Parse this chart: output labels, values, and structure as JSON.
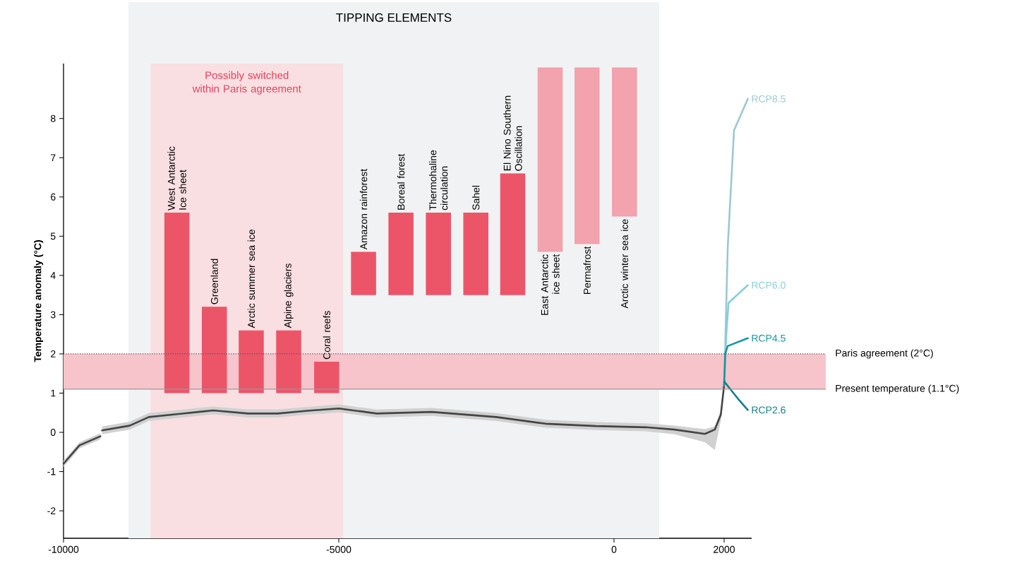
{
  "chart_data": {
    "type": "line",
    "ylabel": "Temperature anomaly (°C)",
    "xlim": [
      -10000,
      2500
    ],
    "ylim": [
      -2.7,
      9.4
    ],
    "xticks": [
      -10000,
      -5000,
      0,
      2000
    ],
    "yticks": [
      -2,
      -1,
      0,
      1,
      2,
      3,
      4,
      5,
      6,
      7,
      8
    ],
    "bands": [
      {
        "axis": "x",
        "from": -8820,
        "to": 820,
        "label": "TIPPING ELEMENTS",
        "color": "#f1f2f3"
      },
      {
        "axis": "x",
        "from": -8420,
        "to": -4920,
        "label": "Possibly switched within Paris agreement",
        "color": "#f9dfe2"
      },
      {
        "axis": "y",
        "from": 1.1,
        "to": 2,
        "color": "#f6c4ca"
      }
    ],
    "ref_lines": [
      {
        "axis": "y",
        "value": 2,
        "label": "Paris agreement (2°C)",
        "line_style": "dotted",
        "color": "#555555"
      },
      {
        "axis": "y",
        "value": 1.1,
        "label": "Present temperature (1.1°C)",
        "line_style": "solid",
        "color": "#999999"
      }
    ],
    "series": [
      {
        "type": "bar",
        "name": "West Antarctic Ice sheet",
        "color": "#ec5568",
        "x": [
          -7940
        ],
        "base": [
          1
        ],
        "values": [
          4.6
        ]
      },
      {
        "type": "bar",
        "name": "Greenland",
        "color": "#ec5568",
        "x": [
          -7260
        ],
        "base": [
          1
        ],
        "values": [
          2.2
        ]
      },
      {
        "type": "bar",
        "name": "Arctic summer sea ice",
        "color": "#ec5568",
        "x": [
          -6590
        ],
        "base": [
          1
        ],
        "values": [
          1.6
        ]
      },
      {
        "type": "bar",
        "name": "Alpine glaciers",
        "color": "#ec5568",
        "x": [
          -5910
        ],
        "base": [
          1
        ],
        "values": [
          1.6
        ]
      },
      {
        "type": "bar",
        "name": "Coral reefs",
        "color": "#ec5568",
        "x": [
          -5220
        ],
        "base": [
          1
        ],
        "values": [
          0.8
        ]
      },
      {
        "type": "bar",
        "name": "Amazon rainforest",
        "color": "#ec5568",
        "x": [
          -4550
        ],
        "base": [
          3.5
        ],
        "values": [
          1.1
        ]
      },
      {
        "type": "bar",
        "name": "Boreal forest",
        "color": "#ec5568",
        "x": [
          -3870
        ],
        "base": [
          3.5
        ],
        "values": [
          2.1
        ]
      },
      {
        "type": "bar",
        "name": "Thermohaline circulation",
        "color": "#ec5568",
        "x": [
          -3190
        ],
        "base": [
          3.5
        ],
        "values": [
          2.1
        ]
      },
      {
        "type": "bar",
        "name": "Sahel",
        "color": "#ec5568",
        "x": [
          -2510
        ],
        "base": [
          3.5
        ],
        "values": [
          2.1
        ]
      },
      {
        "type": "bar",
        "name": "El Nino Southern Oscillation",
        "color": "#ec5568",
        "x": [
          -1840
        ],
        "base": [
          3.5
        ],
        "values": [
          3.1
        ]
      },
      {
        "type": "bar",
        "name": "East Antarctic ice sheet",
        "color": "#f2a3ad",
        "x": [
          -1160
        ],
        "base": [
          4.6
        ],
        "values": [
          4.7
        ]
      },
      {
        "type": "bar",
        "name": "Permafrost",
        "color": "#f2a3ad",
        "x": [
          -490
        ],
        "base": [
          4.8
        ],
        "values": [
          4.5
        ]
      },
      {
        "type": "bar",
        "name": "Arctic winter sea ice",
        "color": "#f2a3ad",
        "x": [
          190
        ],
        "base": [
          5.5
        ],
        "values": [
          3.8
        ]
      },
      {
        "color": "#444444",
        "x": [
          -10000,
          -9710,
          -9330,
          -9315,
          -9300,
          -8800,
          -8450,
          -7550,
          -7280,
          -6650,
          -6110,
          -5570,
          -5000,
          -4310,
          -3310,
          -2140,
          -1240,
          -330,
          570,
          1100,
          1650,
          1830,
          1940,
          2000
        ],
        "values": [
          -0.8,
          -0.33,
          -0.1,
          null,
          0.05,
          0.17,
          0.39,
          0.52,
          0.56,
          0.48,
          0.48,
          0.55,
          0.61,
          0.48,
          0.52,
          0.39,
          0.22,
          0.16,
          0.13,
          0.07,
          -0.04,
          0.07,
          0.45,
          1.2
        ],
        "lower": [
          -0.88,
          -0.41,
          -0.18,
          null,
          -0.05,
          0.07,
          0.29,
          0.42,
          0.46,
          0.38,
          0.38,
          0.45,
          0.51,
          0.38,
          0.42,
          0.29,
          0.12,
          0.06,
          0.03,
          -0.05,
          -0.25,
          -0.45,
          0.3,
          1.2
        ],
        "upper": [
          -0.72,
          -0.25,
          -0.02,
          null,
          0.15,
          0.27,
          0.49,
          0.62,
          0.66,
          0.58,
          0.58,
          0.65,
          0.71,
          0.58,
          0.62,
          0.49,
          0.32,
          0.26,
          0.23,
          0.17,
          0.08,
          0.15,
          0.55,
          1.2
        ]
      },
      {
        "name": "RCP8.5",
        "color": "#9cc8d0",
        "x": [
          2000,
          2020,
          2065,
          2180,
          2430
        ],
        "values": [
          1.2,
          2.2,
          4.7,
          7.7,
          8.5
        ]
      },
      {
        "name": "RCP6.0",
        "color": "#86cfda",
        "x": [
          2000,
          2040,
          2080,
          2430
        ],
        "values": [
          1.2,
          2.5,
          3.3,
          3.75
        ]
      },
      {
        "name": "RCP4.5",
        "color": "#16979d",
        "x": [
          2000,
          2020,
          2065,
          2430
        ],
        "values": [
          1.2,
          2.0,
          2.2,
          2.4
        ]
      },
      {
        "name": "RCP2.6",
        "color": "#157f89",
        "x": [
          2000,
          2250,
          2430
        ],
        "values": [
          1.3,
          0.86,
          0.57
        ]
      }
    ]
  }
}
